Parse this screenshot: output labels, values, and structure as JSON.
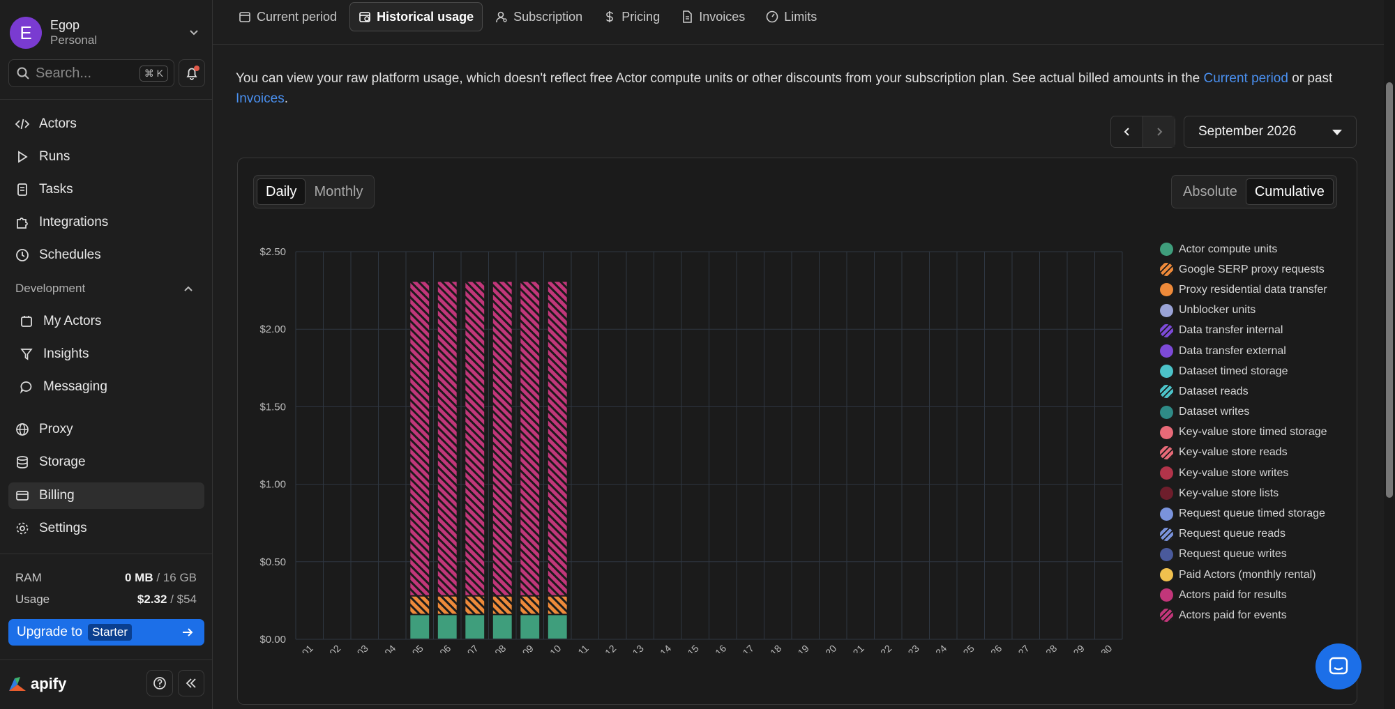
{
  "account": {
    "initial": "E",
    "name": "Egop",
    "plan": "Personal"
  },
  "search": {
    "placeholder": "Search...",
    "shortcut": "⌘ K"
  },
  "nav": {
    "actors": "Actors",
    "runs": "Runs",
    "tasks": "Tasks",
    "integrations": "Integrations",
    "schedules": "Schedules",
    "development": "Development",
    "my_actors": "My Actors",
    "insights": "Insights",
    "messaging": "Messaging",
    "proxy": "Proxy",
    "storage": "Storage",
    "billing": "Billing",
    "settings": "Settings"
  },
  "stats": {
    "ram_label": "RAM",
    "ram_used": "0 MB",
    "ram_total": "/ 16 GB",
    "usage_label": "Usage",
    "usage_used": "$2.32",
    "usage_total": "/ $54"
  },
  "upgrade": {
    "label": "Upgrade to",
    "plan": "Starter"
  },
  "logo": "apify",
  "tabs": [
    "Current period",
    "Historical usage",
    "Subscription",
    "Pricing",
    "Invoices",
    "Limits"
  ],
  "intro": {
    "text1": "You can view your raw platform usage, which doesn't reflect free Actor compute units or other discounts from your subscription plan. See actual billed amounts in the ",
    "link1": "Current period",
    "text2": " or past ",
    "link2": "Invoices",
    "text3": "."
  },
  "month": "September 2026",
  "period_toggle": {
    "daily": "Daily",
    "monthly": "Monthly"
  },
  "mode_toggle": {
    "absolute": "Absolute",
    "cumulative": "Cumulative"
  },
  "chart_data": {
    "type": "bar",
    "stacked": true,
    "y_ticks": [
      "$0.00",
      "$0.50",
      "$1.00",
      "$1.50",
      "$2.00",
      "$2.50"
    ],
    "ylim": [
      0,
      2.5
    ],
    "categories": [
      "2026-09-01",
      "2026-09-02",
      "2026-09-03",
      "2026-09-04",
      "2026-09-05",
      "2026-09-06",
      "2026-09-07",
      "2026-09-08",
      "2026-09-09",
      "2026-09-10",
      "2026-09-11",
      "2026-09-12",
      "2026-09-13",
      "2026-09-14",
      "2026-09-15",
      "2026-09-16",
      "2026-09-17",
      "2026-09-18",
      "2026-09-19",
      "2026-09-20",
      "2026-09-21",
      "2026-09-22",
      "2026-09-23",
      "2026-09-24",
      "2026-09-25",
      "2026-09-26",
      "2026-09-27",
      "2026-09-28",
      "2026-09-29",
      "2026-09-30"
    ],
    "series": [
      {
        "name": "Actor compute units",
        "color": "#3f9e7c",
        "hatched": false,
        "values": [
          0,
          0,
          0,
          0,
          0.16,
          0.16,
          0.16,
          0.16,
          0.16,
          0.16,
          0,
          0,
          0,
          0,
          0,
          0,
          0,
          0,
          0,
          0,
          0,
          0,
          0,
          0,
          0,
          0,
          0,
          0,
          0,
          0
        ]
      },
      {
        "name": "Google SERP proxy requests",
        "color": "#ee8a3a",
        "hatched": true,
        "values": [
          0,
          0,
          0,
          0,
          0.12,
          0.12,
          0.12,
          0.12,
          0.12,
          0.12,
          0,
          0,
          0,
          0,
          0,
          0,
          0,
          0,
          0,
          0,
          0,
          0,
          0,
          0,
          0,
          0,
          0,
          0,
          0,
          0
        ]
      },
      {
        "name": "Actors paid for events",
        "color": "#c2367a",
        "hatched": true,
        "values": [
          0,
          0,
          0,
          0,
          2.03,
          2.03,
          2.03,
          2.03,
          2.03,
          2.03,
          0,
          0,
          0,
          0,
          0,
          0,
          0,
          0,
          0,
          0,
          0,
          0,
          0,
          0,
          0,
          0,
          0,
          0,
          0,
          0
        ]
      }
    ],
    "legend": [
      {
        "name": "Actor compute units",
        "color": "#3f9e7c",
        "hatched": false
      },
      {
        "name": "Google SERP proxy requests",
        "color": "#ee8a3a",
        "hatched": true
      },
      {
        "name": "Proxy residential data transfer",
        "color": "#ee8a3a",
        "hatched": false
      },
      {
        "name": "Unblocker units",
        "color": "#9aa3d6",
        "hatched": false
      },
      {
        "name": "Data transfer internal",
        "color": "#7d4ad8",
        "hatched": true
      },
      {
        "name": "Data transfer external",
        "color": "#7d4ad8",
        "hatched": false
      },
      {
        "name": "Dataset timed storage",
        "color": "#4cc3c9",
        "hatched": false
      },
      {
        "name": "Dataset reads",
        "color": "#4cc3c9",
        "hatched": true
      },
      {
        "name": "Dataset writes",
        "color": "#2f8a86",
        "hatched": false
      },
      {
        "name": "Key-value store timed storage",
        "color": "#e86a78",
        "hatched": false
      },
      {
        "name": "Key-value store reads",
        "color": "#e86a78",
        "hatched": true
      },
      {
        "name": "Key-value store writes",
        "color": "#b2344a",
        "hatched": false
      },
      {
        "name": "Key-value store lists",
        "color": "#6e1e2c",
        "hatched": false
      },
      {
        "name": "Request queue timed storage",
        "color": "#7a93dc",
        "hatched": false
      },
      {
        "name": "Request queue reads",
        "color": "#7a93dc",
        "hatched": true
      },
      {
        "name": "Request queue writes",
        "color": "#4a5a9c",
        "hatched": false
      },
      {
        "name": "Paid Actors (monthly rental)",
        "color": "#f1c14e",
        "hatched": false
      },
      {
        "name": "Actors paid for results",
        "color": "#c2367a",
        "hatched": false
      },
      {
        "name": "Actors paid for events",
        "color": "#c2367a",
        "hatched": true
      }
    ]
  }
}
